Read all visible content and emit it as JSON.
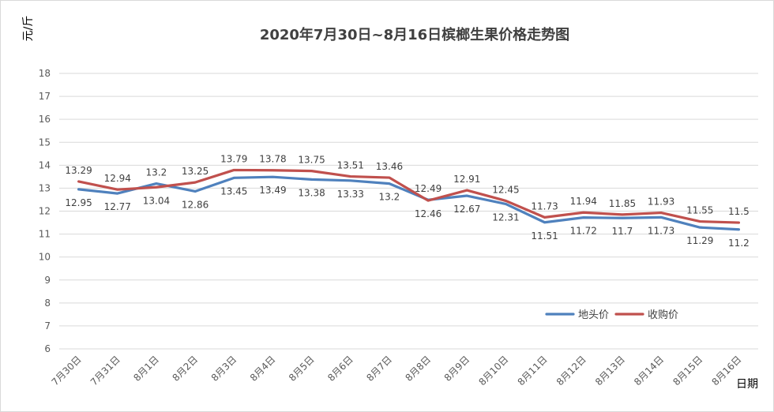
{
  "chart_data": {
    "type": "line",
    "title": "2020年7月30日~8月16日槟榔生果价格走势图",
    "ylabel": "元/斤",
    "xlabel": "日期",
    "ylim": [
      6,
      18
    ],
    "yticks": [
      6,
      7,
      8,
      9,
      10,
      11,
      12,
      13,
      14,
      15,
      16,
      17,
      18
    ],
    "grid": true,
    "legend_position": "bottom-right",
    "categories": [
      "7月30日",
      "7月31日",
      "8月1日",
      "8月2日",
      "8月3日",
      "8月4日",
      "8月5日",
      "8月6日",
      "8月7日",
      "8月8日",
      "8月9日",
      "8月10日",
      "8月11日",
      "8月12日",
      "8月13日",
      "8月14日",
      "8月15日",
      "8月16日"
    ],
    "series": [
      {
        "name": "地头价",
        "color": "#4f81bd",
        "values": [
          12.95,
          12.77,
          13.2,
          12.86,
          13.45,
          13.49,
          13.38,
          13.33,
          13.2,
          12.49,
          12.67,
          12.31,
          11.51,
          11.72,
          11.7,
          11.73,
          11.29,
          11.2
        ]
      },
      {
        "name": "收购价",
        "color": "#c0504d",
        "values": [
          13.29,
          12.94,
          13.04,
          13.25,
          13.79,
          13.78,
          13.75,
          13.51,
          13.46,
          12.46,
          12.91,
          12.45,
          11.73,
          11.94,
          11.85,
          11.93,
          11.55,
          11.5
        ]
      }
    ]
  }
}
